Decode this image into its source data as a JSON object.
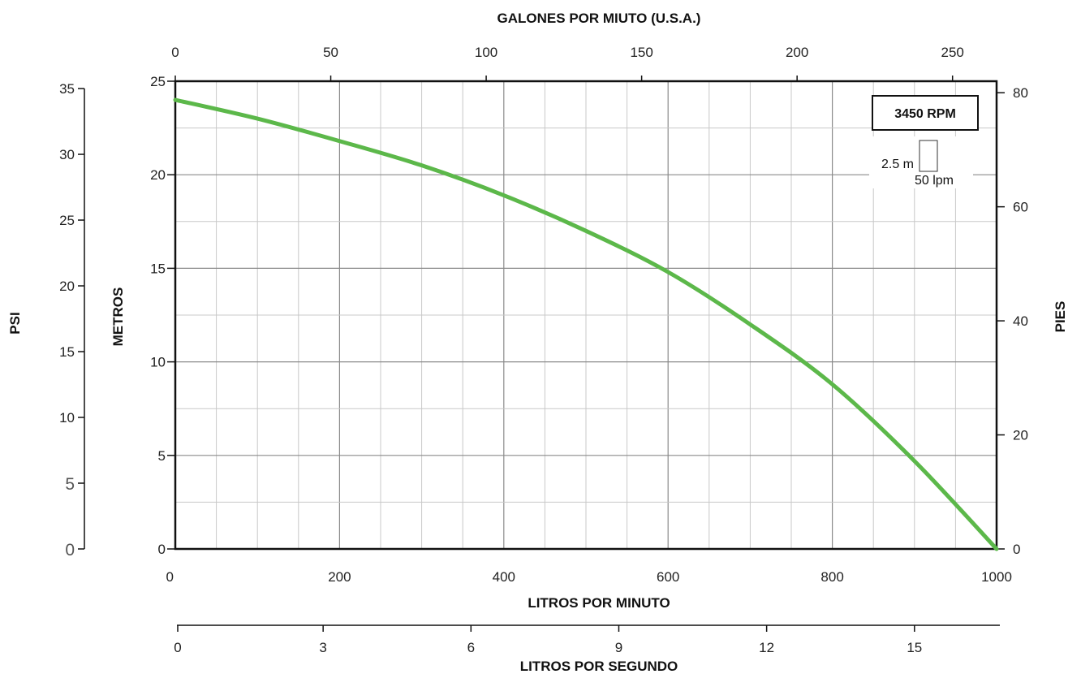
{
  "chart_data": {
    "type": "line",
    "xlabel": "LITROS POR MINUTO",
    "x_ticks": [
      "0",
      "200",
      "400",
      "600",
      "800",
      "1000"
    ],
    "xlim": [
      0,
      1000
    ],
    "ylabel": "METROS",
    "y_ticks": [
      "0",
      "5",
      "10",
      "15",
      "20",
      "25"
    ],
    "ylim": [
      0,
      25
    ],
    "top_axis": {
      "label": "GALONES POR MIUTO (U.S.A.)",
      "ticks": [
        "0",
        "50",
        "100",
        "150",
        "200",
        "250"
      ]
    },
    "right_axis": {
      "label": "PIES",
      "ticks": [
        "0",
        "20",
        "40",
        "60",
        "80"
      ]
    },
    "left_outer_axis": {
      "label": "PSI",
      "ticks": [
        "0",
        "5",
        "10",
        "15",
        "20",
        "25",
        "30",
        "35"
      ]
    },
    "bottom_outer_axis": {
      "label": "LITROS POR SEGUNDO",
      "ticks": [
        "0",
        "3",
        "6",
        "9",
        "12",
        "15"
      ]
    },
    "legend": {
      "title": "3450 RPM",
      "scale_y": "2.5 m",
      "scale_x": "50 lpm"
    },
    "grid": true,
    "series": [
      {
        "color": "#5cb84a",
        "x": [
          0,
          100,
          200,
          300,
          400,
          500,
          600,
          700,
          800,
          900,
          1000
        ],
        "y": [
          24,
          23,
          21.8,
          20.5,
          18.9,
          17,
          14.8,
          12,
          8.8,
          4.7,
          0
        ]
      }
    ]
  }
}
